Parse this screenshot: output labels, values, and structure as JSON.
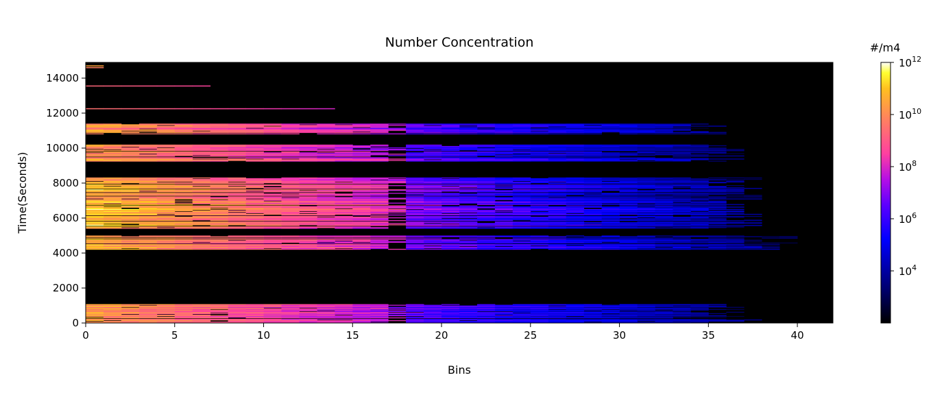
{
  "chart_data": {
    "type": "heatmap",
    "title": "Number Concentration",
    "xlabel": "Bins",
    "ylabel": "Time(Seconds)",
    "xlim": [
      0,
      42
    ],
    "ylim": [
      0,
      14900
    ],
    "x_ticks": [
      0,
      5,
      10,
      15,
      20,
      25,
      30,
      35,
      40
    ],
    "y_ticks": [
      0,
      2000,
      4000,
      6000,
      8000,
      10000,
      12000,
      14000
    ],
    "grid": false,
    "background": "#000000",
    "colormap": "gnuplot2",
    "colorbar": {
      "label": "#/m4",
      "scale": "log",
      "range": [
        100,
        1000000000000.0
      ],
      "tick_bases": [
        "10",
        "10",
        "10",
        "10",
        "10"
      ],
      "tick_exponents": [
        "12",
        "10",
        "8",
        "6",
        "4"
      ],
      "tick_values": [
        1000000000000.0,
        10000000000.0,
        100000000.0,
        1000000.0,
        10000.0
      ]
    },
    "bands": [
      {
        "t": [
          0,
          1050
        ],
        "bins": 36,
        "log_peak": 10.2,
        "decay": 0.16
      },
      {
        "t": [
          4200,
          5000
        ],
        "bins": 39,
        "log_peak": 10.5,
        "decay": 0.16
      },
      {
        "t": [
          5400,
          8300
        ],
        "bins": 37,
        "log_peak": 10.8,
        "decay": 0.17
      },
      {
        "t": [
          9200,
          10200
        ],
        "bins": 36,
        "log_peak": 10.2,
        "decay": 0.16
      },
      {
        "t": [
          10800,
          11400
        ],
        "bins": 35,
        "log_peak": 10.1,
        "decay": 0.16
      }
    ],
    "sparse_lines": [
      {
        "t": 12250,
        "bins": 14,
        "log_peak": 9.5
      },
      {
        "t": 13550,
        "bins": 7,
        "log_peak": 9.3
      },
      {
        "t": 14700,
        "bins": 1,
        "log_peak": 10.5
      },
      {
        "t": 14600,
        "bins": 1,
        "log_peak": 9.8
      }
    ]
  }
}
